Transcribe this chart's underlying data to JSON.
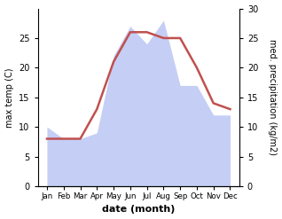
{
  "months": [
    "Jan",
    "Feb",
    "Mar",
    "Apr",
    "May",
    "Jun",
    "Jul",
    "Aug",
    "Sep",
    "Oct",
    "Nov",
    "Dec"
  ],
  "temperature": [
    8,
    8,
    8,
    13,
    21,
    26,
    26,
    25,
    25,
    20,
    14,
    13
  ],
  "precipitation": [
    10,
    8,
    8,
    9,
    22,
    27,
    24,
    28,
    17,
    17,
    12,
    12
  ],
  "temp_color": "#c0504d",
  "precip_fill_color": "#c5cef5",
  "ylabel_left": "max temp (C)",
  "ylabel_right": "med. precipitation (kg/m2)",
  "xlabel": "date (month)",
  "ylim_left": [
    0,
    30
  ],
  "ylim_right": [
    0,
    30
  ],
  "yticks_left": [
    0,
    5,
    10,
    15,
    20,
    25
  ],
  "yticks_right": [
    0,
    5,
    10,
    15,
    20,
    25,
    30
  ],
  "bg_color": "#ffffff"
}
